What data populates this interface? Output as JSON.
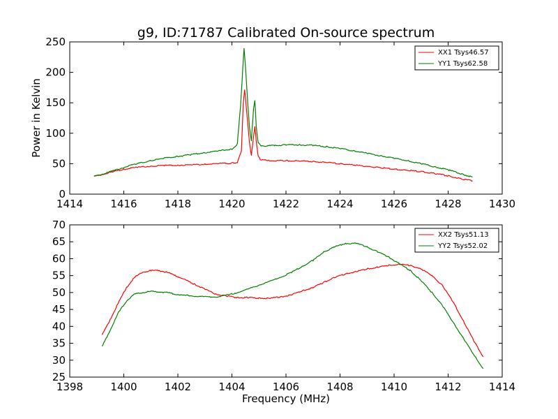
{
  "chart_data": [
    {
      "type": "line",
      "title": "g9, ID:71787 Calibrated On-source spectrum",
      "xlabel": "",
      "ylabel": "Power in Kelvin",
      "xlim": [
        1414,
        1430
      ],
      "ylim": [
        0,
        250
      ],
      "xticks": [
        "1414",
        "1416",
        "1418",
        "1420",
        "1422",
        "1424",
        "1426",
        "1428",
        "1430"
      ],
      "yticks": [
        "0",
        "50",
        "100",
        "150",
        "200",
        "250"
      ],
      "legend_position": "top-right",
      "grid": false,
      "series": [
        {
          "name": "XX1 Tsys46.57",
          "color": "#ff0000",
          "x": [
            1414.9,
            1415.2,
            1415.6,
            1416.0,
            1416.5,
            1417.0,
            1417.5,
            1418.0,
            1418.5,
            1419.0,
            1419.5,
            1420.0,
            1420.2,
            1420.35,
            1420.42,
            1420.47,
            1420.52,
            1420.58,
            1420.65,
            1420.72,
            1420.8,
            1420.85,
            1420.9,
            1420.97,
            1421.05,
            1421.3,
            1421.6,
            1422.0,
            1422.5,
            1423.0,
            1423.5,
            1424.0,
            1424.5,
            1425.0,
            1425.5,
            1426.0,
            1426.5,
            1427.0,
            1427.5,
            1428.0,
            1428.5,
            1428.9
          ],
          "y": [
            29,
            32,
            37,
            41,
            44,
            46,
            47,
            47.5,
            48,
            49,
            50,
            51,
            52,
            70,
            150,
            171,
            150,
            118,
            85,
            63,
            95,
            111,
            88,
            62,
            57,
            55,
            55,
            55,
            54.5,
            53.5,
            52,
            50,
            48,
            45.5,
            43.5,
            41,
            39,
            37,
            34,
            30,
            25,
            22
          ]
        },
        {
          "name": "YY1 Tsys62.58",
          "color": "#008000",
          "x": [
            1414.9,
            1415.2,
            1415.6,
            1416.0,
            1416.5,
            1417.0,
            1417.5,
            1418.0,
            1418.5,
            1419.0,
            1419.5,
            1420.0,
            1420.2,
            1420.32,
            1420.4,
            1420.45,
            1420.5,
            1420.55,
            1420.6,
            1420.65,
            1420.72,
            1420.8,
            1420.85,
            1420.9,
            1420.97,
            1421.05,
            1421.3,
            1421.6,
            1422.0,
            1422.5,
            1423.0,
            1423.5,
            1424.0,
            1424.5,
            1425.0,
            1425.5,
            1426.0,
            1426.5,
            1427.0,
            1427.5,
            1428.0,
            1428.5,
            1428.9
          ],
          "y": [
            29,
            33,
            38,
            44,
            50,
            55,
            59,
            62,
            65,
            68,
            71,
            74,
            82,
            145,
            205,
            240,
            210,
            175,
            140,
            110,
            88,
            140,
            155,
            110,
            85,
            80,
            79,
            80,
            81,
            81,
            80,
            78,
            75,
            71,
            67,
            63,
            59,
            55,
            50,
            45,
            40,
            33,
            28
          ]
        }
      ]
    },
    {
      "type": "line",
      "title": "",
      "xlabel": "Frequency (MHz)",
      "ylabel": "",
      "xlim": [
        1398,
        1414
      ],
      "ylim": [
        25,
        70
      ],
      "xticks": [
        "1398",
        "1400",
        "1402",
        "1404",
        "1406",
        "1408",
        "1410",
        "1412",
        "1414"
      ],
      "yticks": [
        "25",
        "30",
        "35",
        "40",
        "45",
        "50",
        "55",
        "60",
        "65",
        "70"
      ],
      "legend_position": "top-right",
      "grid": false,
      "series": [
        {
          "name": "XX2 Tsys51.13",
          "color": "#ff0000",
          "x": [
            1399.2,
            1399.5,
            1399.8,
            1400.1,
            1400.4,
            1400.7,
            1401.0,
            1401.3,
            1401.6,
            1401.9,
            1402.2,
            1402.6,
            1403.0,
            1403.4,
            1403.8,
            1404.2,
            1404.6,
            1405.0,
            1405.4,
            1405.8,
            1406.2,
            1406.6,
            1407.0,
            1407.4,
            1407.8,
            1408.2,
            1408.6,
            1409.0,
            1409.4,
            1409.8,
            1410.2,
            1410.6,
            1411.0,
            1411.4,
            1411.8,
            1412.2,
            1412.6,
            1413.0,
            1413.3
          ],
          "y": [
            37.5,
            42,
            47,
            51.5,
            54.5,
            56,
            56.5,
            56.5,
            56,
            55,
            54,
            52.5,
            51,
            49.5,
            49,
            48.5,
            48.5,
            48.3,
            48.3,
            48.7,
            49.3,
            50.5,
            51.5,
            53,
            54.5,
            55.5,
            56.2,
            57,
            57.5,
            58,
            58.3,
            58,
            57,
            55,
            52,
            47,
            41,
            35,
            31
          ]
        },
        {
          "name": "YY2 Tsys52.02",
          "color": "#008000",
          "x": [
            1399.2,
            1399.5,
            1399.8,
            1400.1,
            1400.4,
            1400.7,
            1401.0,
            1401.3,
            1401.6,
            1401.9,
            1402.2,
            1402.6,
            1403.0,
            1403.4,
            1403.8,
            1404.2,
            1404.6,
            1405.0,
            1405.4,
            1405.8,
            1406.2,
            1406.6,
            1407.0,
            1407.4,
            1407.8,
            1408.2,
            1408.6,
            1409.0,
            1409.4,
            1409.8,
            1410.2,
            1410.6,
            1411.0,
            1411.4,
            1411.8,
            1412.2,
            1412.6,
            1413.0,
            1413.3
          ],
          "y": [
            34,
            39,
            44,
            47.5,
            49.5,
            50,
            50.3,
            50.2,
            50,
            49.5,
            49.2,
            49,
            48.7,
            48.7,
            49.2,
            50,
            51,
            52.2,
            53.3,
            54.5,
            56,
            57.7,
            59.5,
            62,
            63.5,
            64.5,
            64.5,
            63.5,
            62,
            60.5,
            58.5,
            56.5,
            53.5,
            50,
            46,
            41,
            36,
            31,
            27.5
          ]
        }
      ]
    }
  ]
}
